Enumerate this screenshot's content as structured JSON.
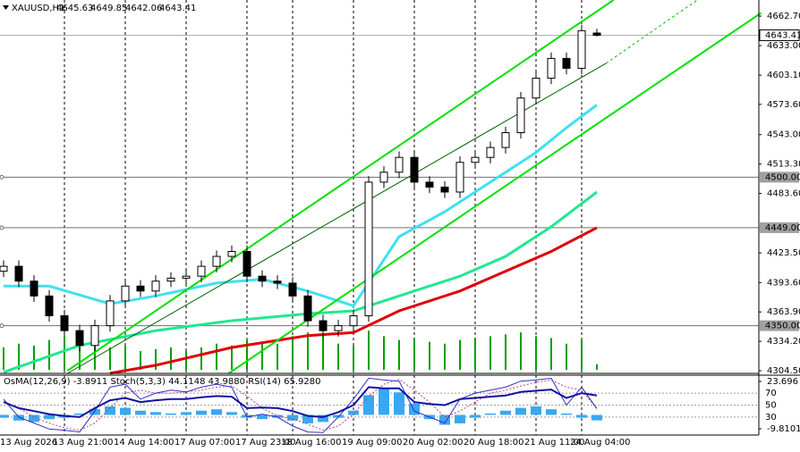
{
  "chart_data": [
    {
      "type": "candlestick",
      "symbol": "XAUUSD,H1",
      "categories": [
        "13 Aug 2026",
        null,
        null,
        null,
        "13 Aug 21:00",
        null,
        null,
        null,
        "14 Aug 14:00",
        null,
        null,
        null,
        "17 Aug 07:00",
        null,
        null,
        null,
        "17 Aug 23:00",
        null,
        null,
        "18 Aug 16:00",
        null,
        null,
        null,
        "19 Aug 09:00",
        null,
        null,
        null,
        "20 Aug 02:00",
        null,
        null,
        null,
        "20 Aug 18:00",
        null,
        null,
        null,
        "21 Aug 11:00",
        null,
        null,
        "24 Aug 04:00",
        null
      ],
      "open": [
        4405,
        4410,
        4395,
        4380,
        4360,
        4345,
        4330,
        4350,
        4375,
        4390,
        4385,
        4395,
        4398,
        4400,
        4410,
        4420,
        4425,
        4400,
        4395,
        4393,
        4380,
        4355,
        4345,
        4350,
        4360,
        4495,
        4505,
        4520,
        4495,
        4490,
        4485,
        4515,
        4520,
        4530,
        4545,
        4580,
        4600,
        4620,
        4610,
        4645.63
      ],
      "high": [
        4416,
        4416,
        4401,
        4386,
        4366,
        4351,
        4356,
        4381,
        4396,
        4396,
        4401,
        4404,
        4406,
        4416,
        4426,
        4431,
        4431,
        4406,
        4401,
        4399,
        4386,
        4361,
        4356,
        4366,
        4501,
        4511,
        4526,
        4526,
        4501,
        4496,
        4521,
        4526,
        4536,
        4551,
        4586,
        4606,
        4626,
        4626,
        4654,
        4649.85
      ],
      "low": [
        4399,
        4389,
        4374,
        4354,
        4339,
        4324,
        4324,
        4344,
        4369,
        4379,
        4379,
        4389,
        4392,
        4394,
        4404,
        4414,
        4394,
        4389,
        4387,
        4374,
        4349,
        4339,
        4339,
        4344,
        4354,
        4489,
        4499,
        4489,
        4484,
        4479,
        4479,
        4509,
        4514,
        4524,
        4539,
        4574,
        4594,
        4604,
        4604,
        4642.06
      ],
      "close": [
        4410,
        4395,
        4380,
        4360,
        4345,
        4330,
        4350,
        4375,
        4390,
        4385,
        4395,
        4398,
        4400,
        4410,
        4420,
        4425,
        4400,
        4395,
        4393,
        4380,
        4355,
        4345,
        4350,
        4360,
        4495,
        4505,
        4520,
        4495,
        4490,
        4485,
        4515,
        4520,
        4530,
        4545,
        4580,
        4600,
        4620,
        4610,
        4648,
        4643.41
      ],
      "volume": [
        600,
        700,
        650,
        800,
        900,
        850,
        700,
        600,
        650,
        500,
        550,
        600,
        500,
        600,
        700,
        650,
        800,
        750,
        700,
        900,
        1000,
        950,
        700,
        650,
        1050,
        900,
        800,
        850,
        750,
        700,
        800,
        850,
        900,
        950,
        1000,
        900,
        850,
        700,
        800,
        150
      ],
      "volume_ylim": [
        0,
        10000
      ],
      "volume_color": "#00a000",
      "moving_averages": [
        {
          "color": "#40e0f0",
          "x": [
            0,
            3,
            7,
            10,
            14,
            17,
            20,
            23,
            26,
            29,
            32,
            35,
            37,
            39
          ],
          "values": [
            4390,
            4390,
            4372,
            4380,
            4393,
            4397,
            4385,
            4370,
            4440,
            4465,
            4495,
            4525,
            4550,
            4573
          ]
        },
        {
          "color": "#20e890",
          "x": [
            0,
            5,
            10,
            15,
            20,
            23,
            26,
            30,
            33,
            36,
            39
          ],
          "values": [
            4303,
            4330,
            4345,
            4355,
            4362,
            4365,
            4380,
            4400,
            4420,
            4450,
            4485
          ]
        },
        {
          "color": "#e00000",
          "x": [
            7,
            10,
            15,
            20,
            23,
            26,
            30,
            33,
            36,
            39
          ],
          "values": [
            4302,
            4310,
            4328,
            4340,
            4343,
            4365,
            4385,
            4405,
            4425,
            4449
          ]
        }
      ],
      "trendlines": [
        {
          "color": "#00e000",
          "x": [
            4.2,
            40.1
          ],
          "values": [
            4304.5,
            4679
          ]
        },
        {
          "color": "#00e000",
          "x": [
            14.8,
            49.8
          ],
          "values": [
            4301.8,
            4666
          ]
        },
        {
          "color": "#006400",
          "x": [
            4.2,
            39.6
          ],
          "values": [
            4301.8,
            4615
          ]
        },
        {
          "color": "#00c000",
          "x": [
            39.6,
            45.6
          ],
          "values": [
            4615,
            4679
          ],
          "dashed": true
        }
      ],
      "levels": [
        {
          "value": 4500,
          "label": "4500.00"
        },
        {
          "value": 4449,
          "label": "4449.00"
        },
        {
          "value": 4350,
          "label": "4350.00"
        }
      ],
      "ylim": [
        4301.8,
        4679
      ],
      "yticks": [
        {
          "value": 4662.7,
          "label": "4662.70"
        },
        {
          "value": 4633,
          "label": "4633.00"
        },
        {
          "value": 4603.1,
          "label": "4603.10"
        },
        {
          "value": 4573.6,
          "label": "4573.60"
        },
        {
          "value": 4543,
          "label": "4543.00"
        },
        {
          "value": 4513.3,
          "label": "4513.30"
        },
        {
          "value": 4483.6,
          "label": "4483.60"
        },
        {
          "value": 4423.5,
          "label": "4423.50"
        },
        {
          "value": 4393.6,
          "label": "4393.60"
        },
        {
          "value": 4363.9,
          "label": "4363.90"
        },
        {
          "value": 4334.2,
          "label": "4334.20"
        },
        {
          "value": 4304.5,
          "label": "4304.50"
        }
      ]
    },
    {
      "type": "oscillators",
      "header": "OsMA(12,26,9) -3.8911 Stoch(5,3,3) 44.1148 43.9880 RSI(14) 65.9280",
      "osma": [
        -2,
        -4,
        -5,
        -3,
        -2,
        1,
        4,
        6,
        5,
        3,
        2,
        1,
        2,
        3,
        4,
        2,
        -2,
        -3,
        -2,
        -4,
        -6,
        -5,
        -2,
        3,
        14,
        19,
        16,
        8,
        -3,
        -7,
        -6,
        -2,
        1,
        3,
        5,
        6,
        4,
        1,
        -2,
        -3.8911
      ],
      "osma_color": "#3aa8f0",
      "ylim": [
        -14.24,
        28.12
      ],
      "yticks": [
        23.696,
        -9.8101
      ],
      "rsi": [
        55,
        45,
        40,
        35,
        32,
        30,
        45,
        58,
        62,
        55,
        58,
        60,
        60,
        63,
        65,
        64,
        45,
        46,
        45,
        40,
        32,
        30,
        38,
        50,
        80,
        78,
        78,
        55,
        52,
        50,
        60,
        62,
        64,
        66,
        72,
        74,
        76,
        62,
        70,
        65.928
      ],
      "rsi_color": "#1010a0",
      "stoch_main": [
        60,
        30,
        20,
        10,
        8,
        5,
        40,
        80,
        85,
        60,
        70,
        75,
        72,
        80,
        85,
        80,
        30,
        35,
        30,
        15,
        5,
        4,
        30,
        60,
        95,
        92,
        90,
        40,
        30,
        20,
        60,
        70,
        75,
        80,
        90,
        92,
        95,
        50,
        80,
        44.1148
      ],
      "stoch_main_color": "#3030c0",
      "stoch_signal": [
        55,
        45,
        30,
        20,
        12,
        8,
        20,
        45,
        70,
        75,
        70,
        70,
        72,
        75,
        80,
        82,
        65,
        45,
        32,
        27,
        18,
        8,
        15,
        35,
        65,
        85,
        93,
        75,
        55,
        30,
        40,
        55,
        70,
        75,
        82,
        88,
        92,
        80,
        75,
        43.988
      ],
      "stoch_signal_color": "#c04080",
      "y2lim": [
        0,
        100
      ],
      "y2ticks": [
        70,
        50,
        30
      ]
    }
  ]
}
